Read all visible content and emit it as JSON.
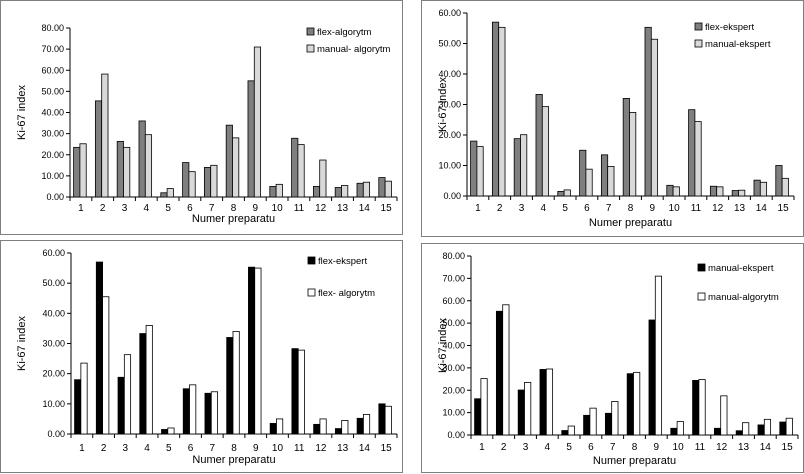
{
  "colors": {
    "flex_algorytm": "#7f7f7f",
    "manual_algorytm": "#d9d9d9",
    "flex_ekspert_dark": "#7f7f7f",
    "manual_ekspert_light": "#d9d9d9",
    "black": "#000000",
    "white": "#ffffff"
  },
  "chart_data": [
    {
      "type": "bar",
      "title": "",
      "xlabel": "Numer preparatu",
      "ylabel": "Ki-67 index",
      "ylim": [
        0,
        80
      ],
      "ystep": 10,
      "grid": false,
      "legend_position": "top-right",
      "categories": [
        "1",
        "2",
        "3",
        "4",
        "5",
        "6",
        "7",
        "8",
        "9",
        "10",
        "11",
        "12",
        "13",
        "14",
        "15"
      ],
      "series": [
        {
          "name": "flex-algorytm",
          "color": "#7f7f7f",
          "values": [
            23.5,
            45.5,
            26.3,
            36.0,
            2.0,
            16.3,
            14.0,
            34.0,
            55.0,
            5.0,
            27.8,
            5.0,
            4.5,
            6.5,
            9.2
          ]
        },
        {
          "name": "manual- algorytm",
          "color": "#d9d9d9",
          "values": [
            25.2,
            58.2,
            23.5,
            29.5,
            4.0,
            12.0,
            15.0,
            28.0,
            71.0,
            6.0,
            24.8,
            17.5,
            5.5,
            7.0,
            7.5
          ]
        }
      ],
      "labels": [
        "0.00",
        "10.00",
        "20.00",
        "30.00",
        "40.00",
        "50.00",
        "60.00",
        "70.00",
        "80.00"
      ]
    },
    {
      "type": "bar",
      "title": "",
      "xlabel": "Numer preparatu",
      "ylabel": "Ki-67 index",
      "ylim": [
        0,
        60
      ],
      "ystep": 10,
      "grid": false,
      "legend_position": "top-right",
      "categories": [
        "1",
        "2",
        "3",
        "4",
        "5",
        "6",
        "7",
        "8",
        "9",
        "10",
        "11",
        "12",
        "13",
        "14",
        "15"
      ],
      "series": [
        {
          "name": "flex-ekspert",
          "color": "#7f7f7f",
          "values": [
            18.0,
            57.0,
            18.8,
            33.3,
            1.5,
            15.0,
            13.5,
            32.0,
            55.3,
            3.5,
            28.3,
            3.2,
            1.8,
            5.2,
            10.0
          ]
        },
        {
          "name": "manual-ekspert",
          "color": "#d9d9d9",
          "values": [
            16.2,
            55.3,
            20.1,
            29.3,
            2.0,
            8.8,
            9.7,
            27.4,
            51.4,
            3.0,
            24.4,
            3.0,
            1.9,
            4.5,
            5.8
          ]
        }
      ],
      "labels": [
        "0.00",
        "10.00",
        "20.00",
        "30.00",
        "40.00",
        "50.00",
        "60.00"
      ]
    },
    {
      "type": "bar",
      "title": "",
      "xlabel": "Numer preparatu",
      "ylabel": "Ki-67 index",
      "ylim": [
        0,
        60
      ],
      "ystep": 10,
      "grid": false,
      "legend_position": "top-right",
      "categories": [
        "1",
        "2",
        "3",
        "4",
        "5",
        "6",
        "7",
        "8",
        "9",
        "10",
        "11",
        "12",
        "13",
        "14",
        "15"
      ],
      "series": [
        {
          "name": "flex-ekspert",
          "color": "#000000",
          "values": [
            18.0,
            57.0,
            18.8,
            33.3,
            1.5,
            15.0,
            13.5,
            32.0,
            55.3,
            3.5,
            28.3,
            3.2,
            1.8,
            5.2,
            10.0
          ]
        },
        {
          "name": "flex- algorytm",
          "color": "#ffffff",
          "values": [
            23.5,
            45.5,
            26.3,
            36.0,
            2.0,
            16.3,
            14.0,
            34.0,
            55.0,
            5.0,
            27.8,
            5.0,
            4.5,
            6.5,
            9.2
          ]
        }
      ],
      "labels": [
        "0.00",
        "10.00",
        "20.00",
        "30.00",
        "40.00",
        "50.00",
        "60.00"
      ]
    },
    {
      "type": "bar",
      "title": "",
      "xlabel": "Numer preparatu",
      "ylabel": "Ki-67 index",
      "ylim": [
        0,
        80
      ],
      "ystep": 10,
      "grid": false,
      "legend_position": "top-right",
      "categories": [
        "1",
        "2",
        "3",
        "4",
        "5",
        "6",
        "7",
        "8",
        "9",
        "10",
        "11",
        "12",
        "13",
        "14",
        "15"
      ],
      "series": [
        {
          "name": "manual-ekspert",
          "color": "#000000",
          "values": [
            16.2,
            55.3,
            20.1,
            29.3,
            2.0,
            8.8,
            9.7,
            27.4,
            51.4,
            3.0,
            24.4,
            3.0,
            1.9,
            4.5,
            5.8
          ]
        },
        {
          "name": "manual-algorytm",
          "color": "#ffffff",
          "values": [
            25.2,
            58.2,
            23.5,
            29.5,
            4.0,
            12.0,
            15.0,
            28.0,
            71.0,
            6.0,
            24.8,
            17.5,
            5.5,
            7.0,
            7.5
          ]
        }
      ],
      "labels": [
        "0.00",
        "10.00",
        "20.00",
        "30.00",
        "40.00",
        "50.00",
        "60.00",
        "70.00",
        "80.00"
      ]
    }
  ]
}
